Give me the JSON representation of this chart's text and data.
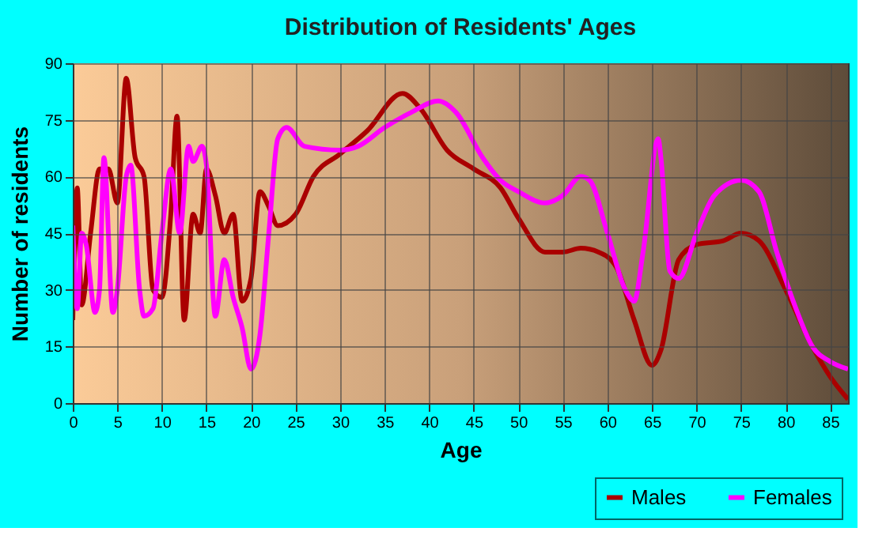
{
  "chart_data": {
    "type": "line",
    "title": "Distribution of Residents' Ages",
    "xlabel": "Age",
    "ylabel": "Number of residents",
    "xlim": [
      0,
      87
    ],
    "xticks": [
      0,
      5,
      10,
      15,
      20,
      25,
      30,
      35,
      40,
      45,
      50,
      55,
      60,
      65,
      70,
      75,
      80,
      85
    ],
    "ylim": [
      0,
      90
    ],
    "yticks": [
      0,
      15,
      30,
      45,
      60,
      75,
      90
    ],
    "grid": true,
    "legend": "bottom right",
    "series": [
      {
        "name": "Males",
        "color": "#aa0000",
        "x": [
          0,
          0.5,
          1,
          2,
          3,
          4,
          5,
          6,
          7,
          8,
          9,
          10,
          11,
          11.7,
          12.5,
          13.5,
          14.3,
          15,
          16,
          17,
          18,
          19,
          20,
          21,
          22,
          23,
          25,
          27,
          30,
          33,
          37,
          39,
          42,
          45,
          48,
          50,
          53,
          55,
          57,
          59,
          61,
          63,
          65,
          66,
          68,
          70,
          73,
          75,
          77,
          80,
          83,
          85,
          87
        ],
        "values": [
          22,
          57,
          26,
          45,
          62,
          62,
          53,
          86,
          65,
          60,
          30,
          28,
          50,
          76,
          22,
          50,
          45,
          62,
          55,
          45,
          50,
          27,
          33,
          56,
          52,
          47,
          50,
          60,
          66,
          72,
          82,
          78,
          67,
          62,
          57,
          49,
          40,
          40,
          41,
          40,
          36,
          22,
          10,
          14,
          38,
          42,
          43,
          45,
          43,
          30,
          15,
          7,
          1
        ]
      },
      {
        "name": "Females",
        "color": "#ff00ff",
        "x": [
          0,
          0.5,
          1,
          1.5,
          2.5,
          3,
          3.5,
          4.5,
          5,
          6,
          6.5,
          7.5,
          8,
          9,
          10,
          11,
          12,
          13,
          13.5,
          14.5,
          15,
          16,
          17,
          18,
          19,
          20,
          21,
          22,
          23,
          24,
          26,
          30,
          32,
          35,
          38,
          41,
          43,
          46,
          48,
          50,
          53,
          55,
          57,
          58,
          60,
          62,
          63,
          64,
          65.7,
          66,
          67,
          68,
          70,
          72,
          75,
          77,
          79,
          81,
          83,
          85,
          87
        ],
        "values": [
          47,
          25,
          45,
          42,
          24,
          30,
          65,
          24,
          30,
          60,
          63,
          30,
          23,
          25,
          45,
          62,
          45,
          68,
          64,
          68,
          63,
          23,
          38,
          28,
          20,
          9,
          18,
          45,
          70,
          73,
          68,
          67,
          68,
          73,
          77,
          80,
          77,
          65,
          59,
          56,
          53,
          55,
          60,
          59,
          45,
          30,
          27,
          40,
          70,
          65,
          35,
          33,
          45,
          55,
          59,
          56,
          40,
          26,
          15,
          11,
          9
        ]
      }
    ]
  }
}
